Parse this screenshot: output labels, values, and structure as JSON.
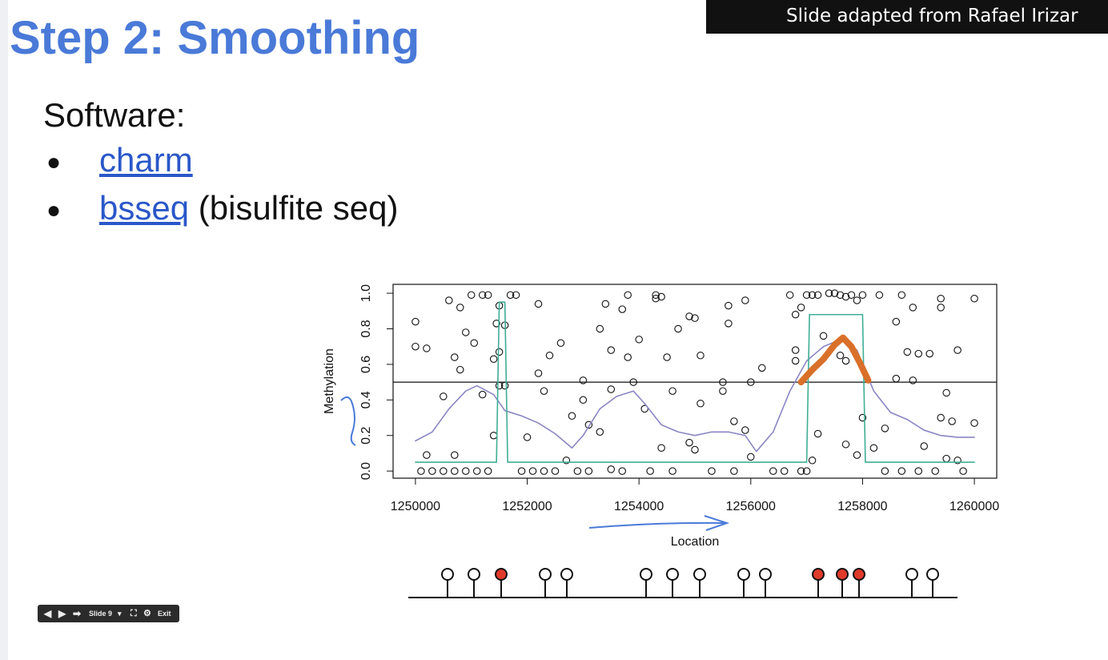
{
  "header": {
    "credit": "Slide adapted from Rafael Irizar"
  },
  "slide": {
    "title": "Step 2: Smoothing",
    "subtitle": "Software:",
    "bullets": [
      {
        "link": "charm"
      },
      {
        "link": "bsseq",
        "text": " (bisulfite seq)"
      }
    ]
  },
  "controls": {
    "slide": "Slide 9",
    "exit": "Exit"
  },
  "chart_data": {
    "type": "scatter",
    "xlabel": "Location",
    "ylabel": "Methylation",
    "xlim": [
      1249600,
      1260400
    ],
    "ylim": [
      -0.04,
      1.05
    ],
    "xticks": [
      1250000,
      1252000,
      1254000,
      1256000,
      1258000,
      1260000
    ],
    "yticks": [
      {
        "value": 0,
        "label": "0.0"
      },
      0.2,
      0.4,
      0.6,
      0.8,
      {
        "value": 1,
        "label": "1.0"
      }
    ],
    "hline": 0.5,
    "series": [
      {
        "type": "scatter",
        "color": "#111111",
        "x": [
          1250000,
          1250000,
          1250200,
          1250500,
          1250600,
          1250700,
          1250800,
          1250800,
          1250900,
          1251000,
          1251050,
          1251200,
          1251300,
          1251200,
          1251400,
          1251400,
          1251450,
          1251500,
          1251500,
          1251600,
          1251700,
          1251800,
          1251500,
          1251600,
          1250100,
          1250300,
          1250500,
          1250700,
          1250900,
          1251100,
          1251300,
          1250200,
          1250700,
          1252000,
          1252200,
          1252300,
          1252200,
          1252400,
          1252600,
          1252800,
          1253000,
          1253000,
          1253100,
          1252700,
          1251900,
          1252100,
          1252300,
          1252500,
          1252900,
          1253100,
          1253300,
          1253400,
          1253500,
          1253300,
          1253500,
          1253800,
          1253900,
          1253800,
          1253700,
          1254000,
          1254100,
          1254300,
          1254300,
          1254400,
          1254500,
          1254400,
          1254600,
          1254700,
          1254900,
          1254900,
          1255000,
          1255100,
          1255100,
          1255000,
          1255500,
          1255500,
          1255600,
          1255600,
          1255700,
          1255900,
          1255900,
          1256000,
          1256200,
          1256000,
          1253500,
          1253700,
          1254200,
          1254600,
          1255300,
          1255700,
          1256400,
          1256600,
          1256700,
          1256800,
          1256900,
          1257000,
          1256800,
          1256800,
          1257100,
          1257200,
          1257300,
          1257400,
          1257500,
          1257600,
          1257700,
          1257800,
          1257900,
          1258000,
          1258300,
          1257600,
          1257700,
          1257700,
          1257200,
          1257100,
          1257900,
          1258000,
          1258200,
          1258400,
          1258600,
          1258700,
          1258900,
          1258600,
          1258800,
          1258900,
          1259000,
          1259200,
          1259400,
          1259400,
          1259500,
          1259400,
          1259700,
          1259600,
          1260000,
          1260000,
          1259100,
          1259500,
          1259700,
          1258400,
          1258700,
          1259000,
          1259300,
          1259800,
          1257000,
          1256900
        ],
        "values": [
          0.84,
          0.7,
          0.69,
          0.42,
          0.96,
          0.64,
          0.92,
          0.57,
          0.78,
          0.99,
          0.72,
          0.99,
          0.99,
          0.43,
          0.63,
          0.2,
          0.83,
          0.67,
          0.93,
          0.82,
          0.99,
          0.99,
          0.48,
          0.48,
          0,
          0,
          0,
          0,
          0,
          0,
          0,
          0.09,
          0.09,
          0.19,
          0.55,
          0.45,
          0.94,
          0.65,
          0.72,
          0.31,
          0.51,
          0.4,
          0.26,
          0.06,
          0,
          0,
          0,
          0,
          0,
          0,
          0.8,
          0.94,
          0.46,
          0.22,
          0.68,
          0.64,
          0.5,
          0.99,
          0.91,
          0.74,
          0.35,
          0.99,
          0.97,
          0.98,
          0.64,
          0.13,
          0.45,
          0.8,
          0.87,
          0.16,
          0.12,
          0.38,
          0.65,
          0.86,
          0.5,
          0.45,
          0.93,
          0.83,
          0.28,
          0.96,
          0.23,
          0.5,
          0.58,
          0.08,
          0.01,
          0,
          0,
          0,
          0,
          0,
          0,
          0,
          0.99,
          0.88,
          0.92,
          0.99,
          0.68,
          0.62,
          0.99,
          0.99,
          0.76,
          1.0,
          1.0,
          0.99,
          0.98,
          0.99,
          0.96,
          0.99,
          0.99,
          0.65,
          0.62,
          0.15,
          0.21,
          0.06,
          0.09,
          0.3,
          0.13,
          0.24,
          0.84,
          0.99,
          0.92,
          0.52,
          0.67,
          0.51,
          0.66,
          0.66,
          0.97,
          0.92,
          0.44,
          0.3,
          0.68,
          0.28,
          0.97,
          0.27,
          0.14,
          0.07,
          0.06,
          0,
          0,
          0,
          0,
          0,
          0,
          0
        ]
      },
      {
        "type": "line",
        "color": "#8a86c4",
        "x": [
          1250000,
          1250300,
          1250600,
          1250900,
          1251100,
          1251400,
          1251600,
          1251900,
          1252200,
          1252500,
          1252800,
          1253000,
          1253300,
          1253600,
          1253900,
          1254100,
          1254400,
          1254700,
          1255000,
          1255300,
          1255600,
          1255900,
          1256100,
          1256400,
          1256700,
          1257000,
          1257300,
          1257600,
          1257900,
          1258200,
          1258500,
          1258800,
          1259100,
          1259400,
          1259700,
          1260000
        ],
        "values": [
          0.17,
          0.22,
          0.35,
          0.45,
          0.48,
          0.43,
          0.34,
          0.31,
          0.27,
          0.21,
          0.13,
          0.2,
          0.35,
          0.42,
          0.45,
          0.38,
          0.26,
          0.22,
          0.2,
          0.22,
          0.22,
          0.2,
          0.11,
          0.22,
          0.45,
          0.62,
          0.7,
          0.74,
          0.68,
          0.45,
          0.33,
          0.29,
          0.23,
          0.2,
          0.19,
          0.19
        ]
      },
      {
        "type": "line",
        "color": "#3fae96",
        "x": [
          1250000,
          1251450,
          1251500,
          1251600,
          1251650,
          1257000,
          1257050,
          1258000,
          1258050,
          1260000
        ],
        "values": [
          0.05,
          0.05,
          0.95,
          0.95,
          0.05,
          0.05,
          0.88,
          0.88,
          0.05,
          0.05
        ]
      },
      {
        "type": "thick",
        "color": "#d9702a",
        "x": [
          1256900,
          1257100,
          1257300,
          1257500,
          1257650,
          1257800,
          1257950,
          1258100
        ],
        "values": [
          0.5,
          0.57,
          0.63,
          0.71,
          0.75,
          0.7,
          0.61,
          0.51
        ]
      }
    ]
  }
}
